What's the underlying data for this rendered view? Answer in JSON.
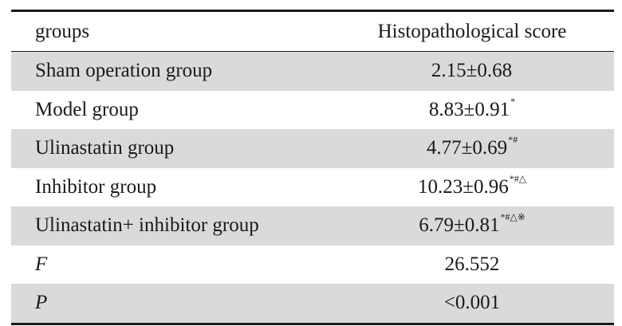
{
  "table": {
    "headers": {
      "group": "groups",
      "score": "Histopathological score"
    },
    "rows": [
      {
        "group": "Sham operation group",
        "value": "2.15±0.68",
        "mark": "",
        "shaded": true
      },
      {
        "group": "Model group",
        "value": "8.83±0.91",
        "mark": "*",
        "shaded": false
      },
      {
        "group": "Ulinastatin group",
        "value": "4.77±0.69",
        "mark": "*#",
        "shaded": true
      },
      {
        "group": "Inhibitor group",
        "value": "10.23±0.96",
        "mark": "*#△",
        "shaded": false
      },
      {
        "group": "Ulinastatin+ inhibitor group",
        "value": "6.79±0.81",
        "mark": "*#△※",
        "shaded": true
      },
      {
        "group": "F",
        "value": "26.552",
        "mark": "",
        "shaded": false,
        "italic": true
      },
      {
        "group": "P",
        "value": "<0.001",
        "mark": "",
        "shaded": true,
        "italic": true
      }
    ]
  }
}
